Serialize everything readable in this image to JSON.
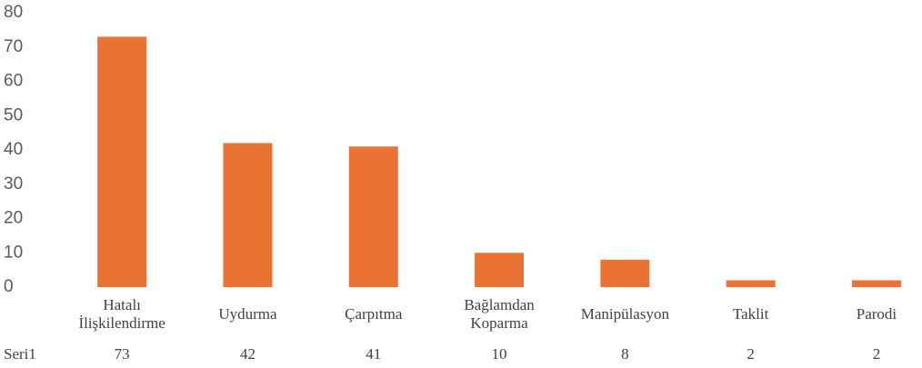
{
  "chart_data": {
    "type": "bar",
    "categories": [
      "Hatalı İlişkilendirme",
      "Uydurma",
      "Çarpıtma",
      "Bağlamdan Koparma",
      "Manipülasyon",
      "Taklit",
      "Parodi"
    ],
    "series": [
      {
        "name": "Seri1",
        "color": "#ea7232",
        "values": [
          73,
          42,
          41,
          10,
          8,
          2,
          2
        ]
      }
    ],
    "ylim": [
      0,
      80
    ],
    "yticks": [
      0,
      10,
      20,
      30,
      40,
      50,
      60,
      70,
      80
    ],
    "grid": false
  }
}
